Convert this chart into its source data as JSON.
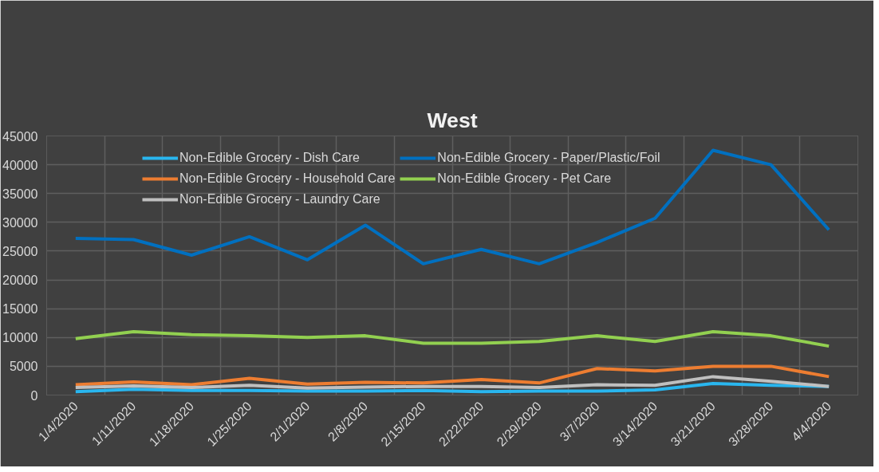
{
  "chart_data": {
    "type": "line",
    "title": "West",
    "categories": [
      "1/4/2020",
      "1/11/2020",
      "1/18/2020",
      "1/25/2020",
      "2/1/2020",
      "2/8/2020",
      "2/15/2020",
      "2/22/2020",
      "2/29/2020",
      "3/7/2020",
      "3/14/2020",
      "3/21/2020",
      "3/28/2020",
      "4/4/2020"
    ],
    "series": [
      {
        "name": "Non-Edible Grocery - Dish Care",
        "color": "#29b6ef",
        "values": [
          600,
          1000,
          800,
          800,
          700,
          700,
          800,
          600,
          700,
          700,
          900,
          2000,
          1700,
          1500
        ]
      },
      {
        "name": "Non-Edible Grocery - Household Care",
        "color": "#ed7d31",
        "values": [
          1800,
          2300,
          1800,
          2900,
          1900,
          2200,
          2100,
          2700,
          2100,
          4600,
          4200,
          5000,
          5000,
          3200
        ]
      },
      {
        "name": "Non-Edible Grocery - Laundry Care",
        "color": "#bfbfbf",
        "values": [
          1300,
          1600,
          1300,
          1700,
          1200,
          1400,
          1500,
          1500,
          1300,
          1800,
          1700,
          3200,
          2400,
          1500
        ]
      },
      {
        "name": "Non-Edible Grocery - Paper/Plastic/Foil",
        "color": "#0070c0",
        "values": [
          27200,
          27000,
          24300,
          27500,
          23500,
          29500,
          22800,
          25300,
          22800,
          26500,
          30700,
          42500,
          40000,
          28700
        ]
      },
      {
        "name": "Non-Edible Grocery - Pet Care",
        "color": "#92d050",
        "values": [
          9800,
          11000,
          10500,
          10300,
          10000,
          10300,
          9000,
          9000,
          9300,
          10300,
          9300,
          11000,
          10300,
          8500
        ]
      }
    ],
    "ylim": [
      0,
      45000
    ],
    "yticks": [
      0,
      5000,
      10000,
      15000,
      20000,
      25000,
      30000,
      35000,
      40000,
      45000
    ],
    "grid": true,
    "legend": "top",
    "marker": "none",
    "line_style": "solid"
  }
}
